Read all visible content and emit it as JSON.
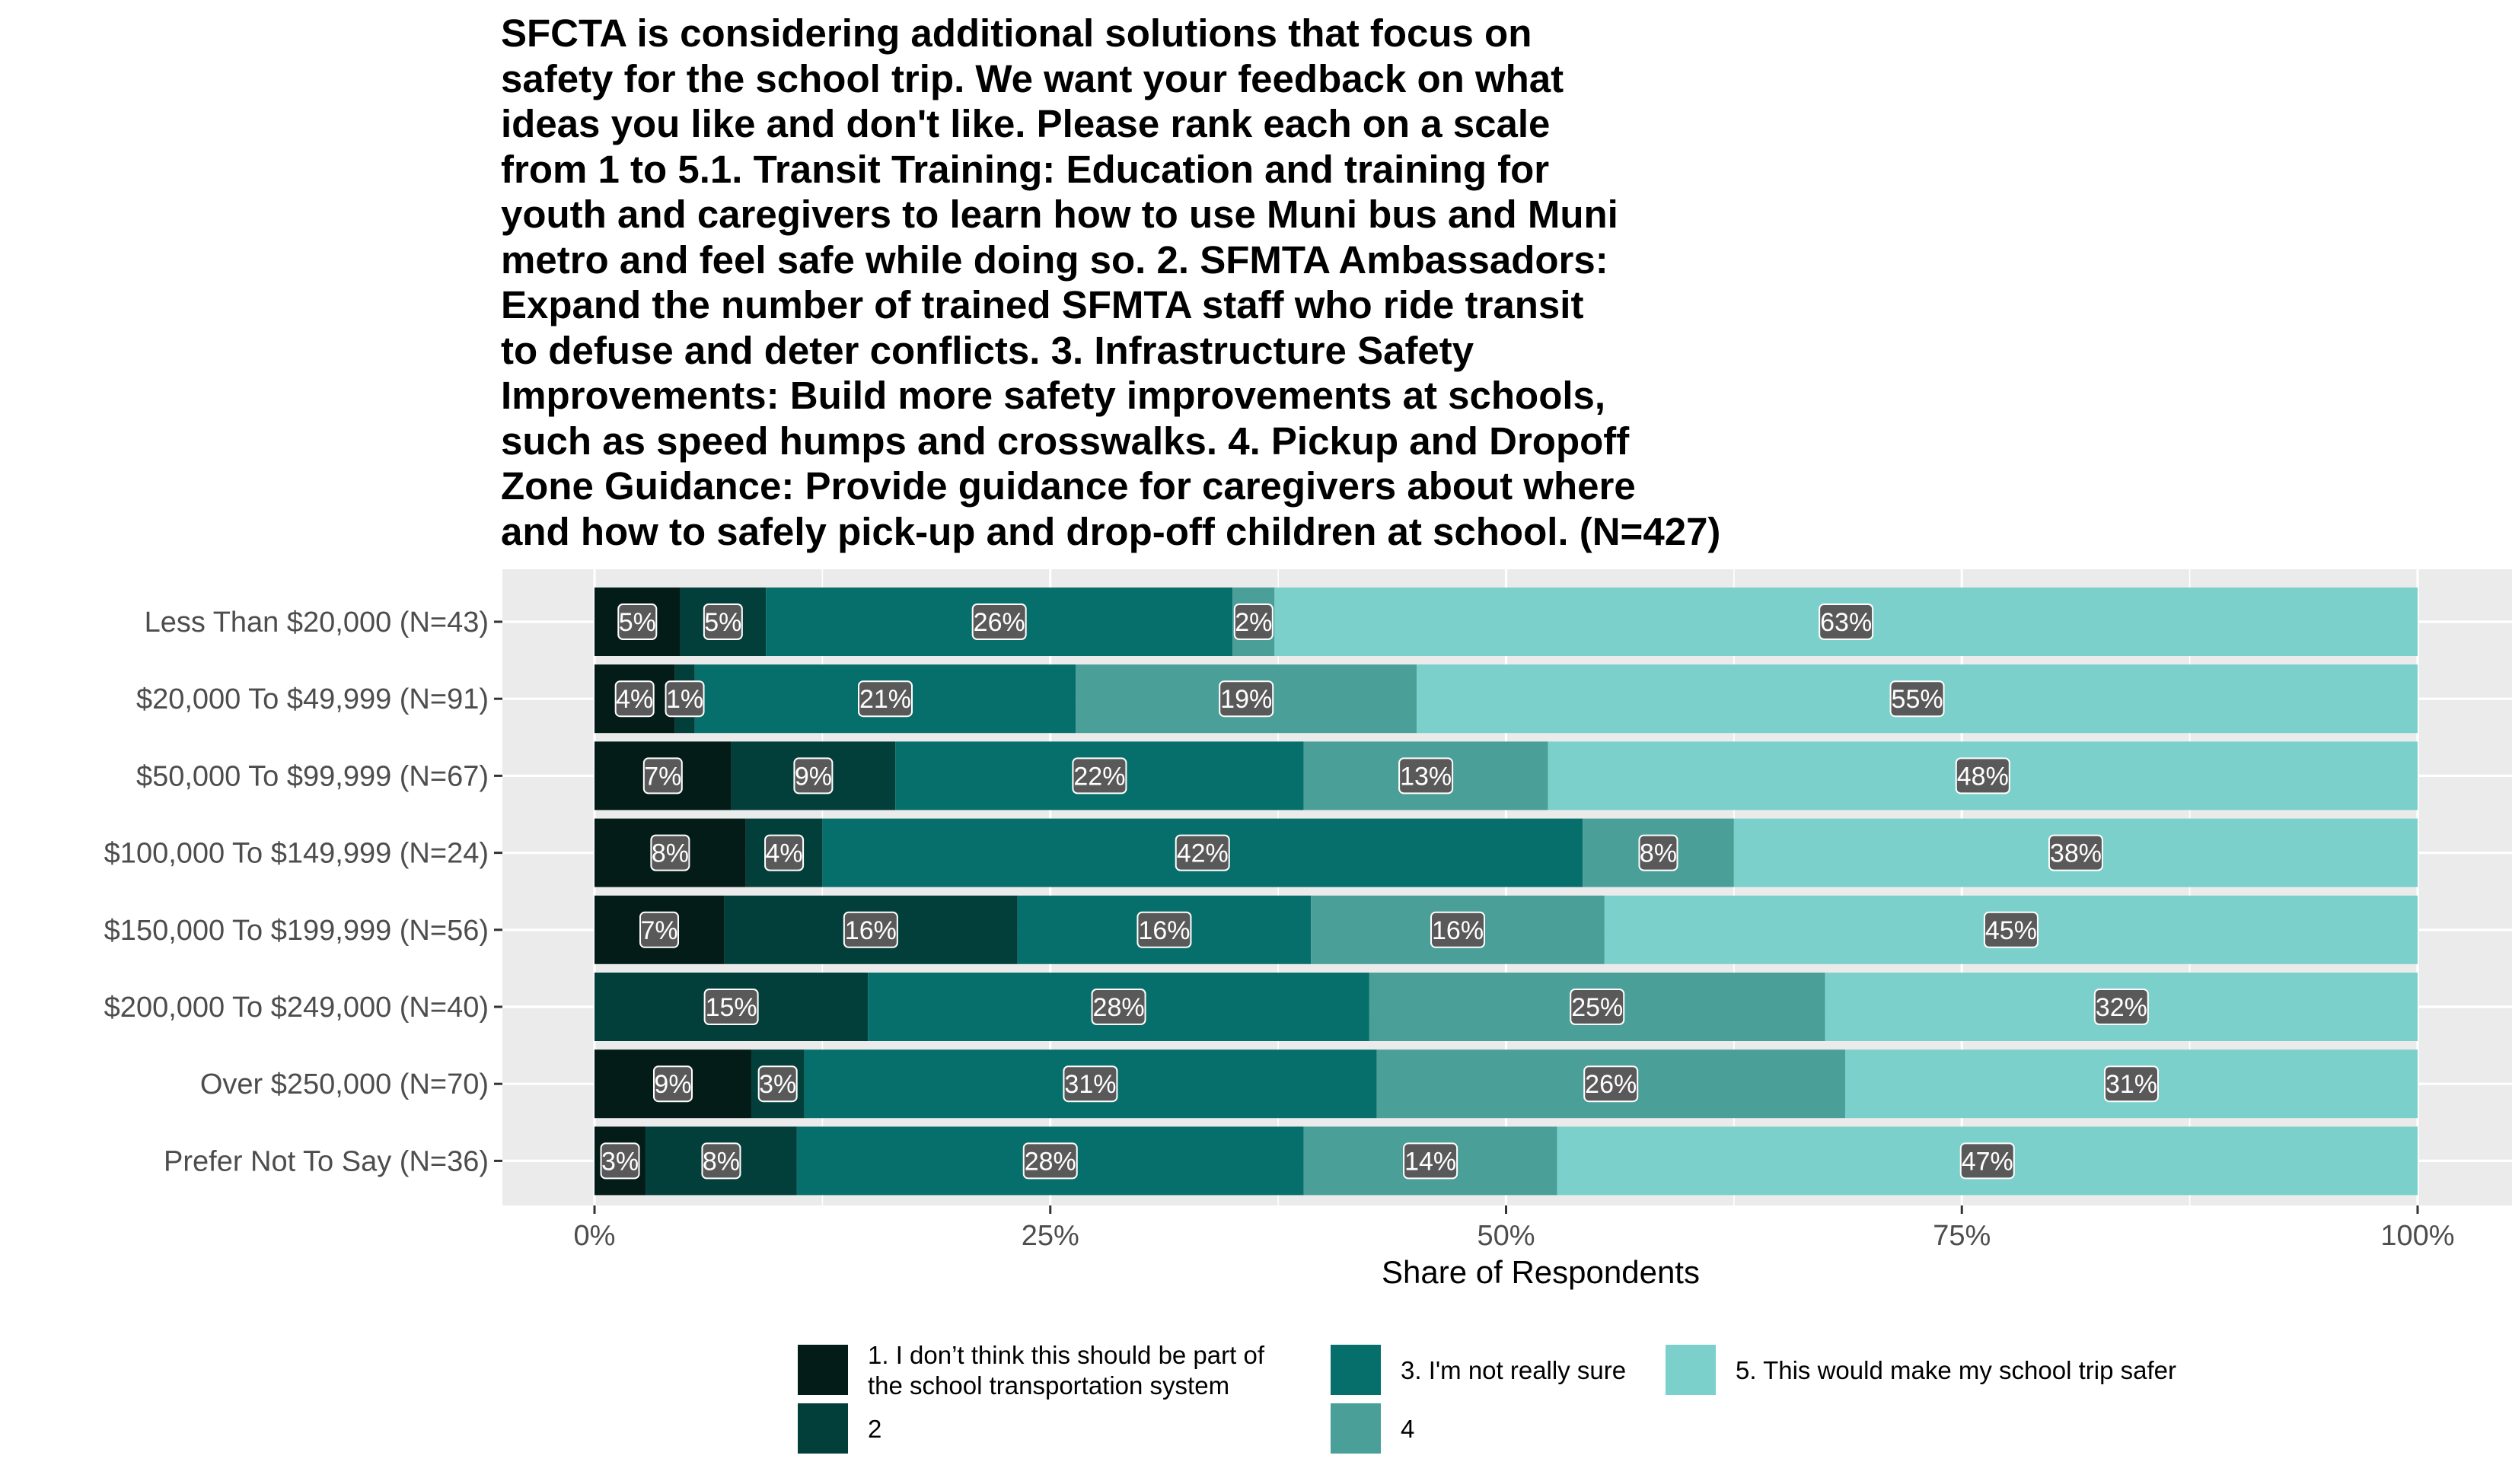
{
  "chart_data": {
    "type": "bar",
    "orientation": "horizontal",
    "stacked": true,
    "title": "SFCTA is considering additional solutions that focus on\nsafety for the school trip. We want your feedback on what\nideas you like and don't like. Please rank each on a scale\nfrom 1 to 5.1. Transit Training: Education and training for\nyouth and caregivers to learn how to use Muni bus and Muni\nmetro and feel safe while doing so. 2. SFMTA Ambassadors:\nExpand the number of trained SFMTA staff who ride transit\nto defuse and deter conflicts. 3. Infrastructure Safety\nImprovements: Build more safety improvements at schools,\nsuch as speed humps and crosswalks. 4. Pickup and Dropoff\nZone Guidance: Provide guidance for caregivers about where\nand how to safely pick-up and drop-off children at school. (N=427)",
    "xlabel": "Share of Respondents",
    "ylabel": "",
    "xlim": [
      0,
      1
    ],
    "x_ticks": [
      "0%",
      "25%",
      "50%",
      "75%",
      "100%"
    ],
    "grid": true,
    "legend_position": "bottom",
    "categories": [
      "Less Than $20,000 (N=43)",
      "$20,000 To $49,999 (N=91)",
      "$50,000 To $99,999 (N=67)",
      "$100,000 To $149,999 (N=24)",
      "$150,000 To $199,999 (N=56)",
      "$200,000 To $249,000 (N=40)",
      "Over $250,000 (N=70)",
      "Prefer Not To Say (N=36)"
    ],
    "series": [
      {
        "name": "1. I don’t think this should be part of\nthe school transportation system",
        "color": "#031c18",
        "values": [
          0.047,
          0.044,
          0.075,
          0.083,
          0.071,
          0.0,
          0.086,
          0.028
        ],
        "labels": [
          "5%",
          "4%",
          "7%",
          "8%",
          "7%",
          "",
          "9%",
          "3%"
        ]
      },
      {
        "name": "2",
        "color": "#023f3b",
        "values": [
          0.047,
          0.011,
          0.09,
          0.042,
          0.161,
          0.15,
          0.029,
          0.083
        ],
        "labels": [
          "5%",
          "1%",
          "9%",
          "4%",
          "16%",
          "15%",
          "3%",
          "8%"
        ]
      },
      {
        "name": "3. I'm not really sure",
        "color": "#076f6b",
        "values": [
          0.256,
          0.209,
          0.224,
          0.417,
          0.161,
          0.275,
          0.314,
          0.278
        ],
        "labels": [
          "26%",
          "21%",
          "22%",
          "42%",
          "16%",
          "28%",
          "31%",
          "28%"
        ]
      },
      {
        "name": "4",
        "color": "#4b9f99",
        "values": [
          0.023,
          0.187,
          0.134,
          0.083,
          0.161,
          0.25,
          0.257,
          0.139
        ],
        "labels": [
          "2%",
          "19%",
          "13%",
          "8%",
          "16%",
          "25%",
          "26%",
          "14%"
        ]
      },
      {
        "name": "5. This would make my school trip safer",
        "color": "#7bd0cb",
        "values": [
          0.627,
          0.549,
          0.477,
          0.375,
          0.446,
          0.325,
          0.314,
          0.472
        ],
        "labels": [
          "63%",
          "55%",
          "48%",
          "38%",
          "45%",
          "32%",
          "31%",
          "47%"
        ]
      }
    ]
  },
  "colors": {
    "panel_background": "#ebebeb",
    "gridline": "#ffffff",
    "label_box": "#595959",
    "label_text": "#ffffff"
  }
}
